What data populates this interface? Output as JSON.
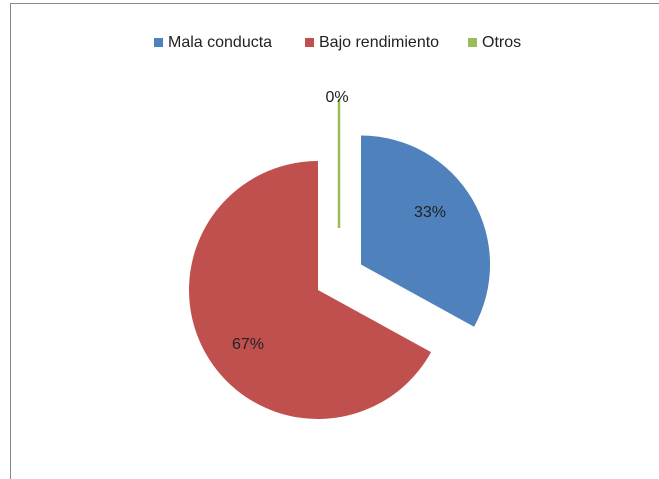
{
  "chart_data": {
    "type": "pie",
    "categories": [
      "Mala conducta",
      "Bajo rendimiento",
      "Otros"
    ],
    "values": [
      33,
      67,
      0
    ],
    "value_labels": [
      "33%",
      "67%",
      "0%"
    ],
    "colors": [
      "#4f81bd",
      "#c0504d",
      "#9bbb59"
    ],
    "legend": "top"
  }
}
